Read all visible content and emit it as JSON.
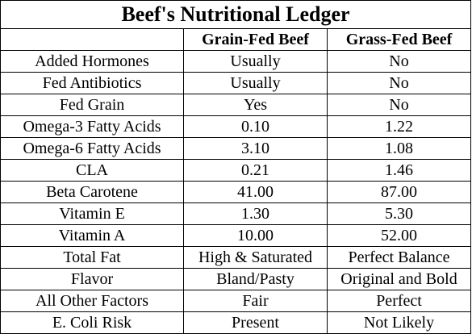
{
  "title": "Beef's Nutritional Ledger",
  "columns": [
    "",
    "Grain-Fed Beef",
    "Grass-Fed Beef"
  ],
  "rows": [
    {
      "factor": "Added Hormones",
      "grain": "Usually",
      "grass": "No"
    },
    {
      "factor": "Fed Antibiotics",
      "grain": "Usually",
      "grass": "No"
    },
    {
      "factor": "Fed Grain",
      "grain": "Yes",
      "grass": "No"
    },
    {
      "factor": "Omega-3 Fatty Acids",
      "grain": "0.10",
      "grass": "1.22"
    },
    {
      "factor": "Omega-6 Fatty Acids",
      "grain": "3.10",
      "grass": "1.08"
    },
    {
      "factor": "CLA",
      "grain": "0.21",
      "grass": "1.46"
    },
    {
      "factor": "Beta Carotene",
      "grain": "41.00",
      "grass": "87.00"
    },
    {
      "factor": "Vitamin E",
      "grain": "1.30",
      "grass": "5.30"
    },
    {
      "factor": "Vitamin A",
      "grain": "10.00",
      "grass": "52.00"
    },
    {
      "factor": "Total Fat",
      "grain": "High & Saturated",
      "grass": "Perfect Balance"
    },
    {
      "factor": "Flavor",
      "grain": "Bland/Pasty",
      "grass": "Original and Bold"
    },
    {
      "factor": "All Other Factors",
      "grain": "Fair",
      "grass": "Perfect"
    },
    {
      "factor": "E. Coli Risk",
      "grain": "Present",
      "grass": "Not Likely"
    }
  ]
}
